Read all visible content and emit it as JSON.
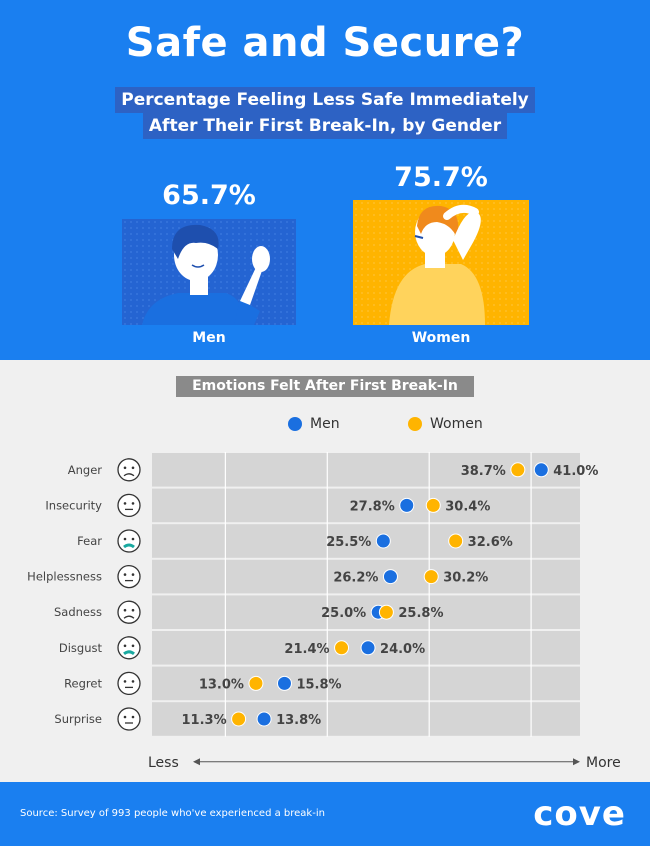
{
  "header": {
    "title": "Safe and Secure?",
    "subtitle_line1": "Percentage Feeling Less Safe Immediately",
    "subtitle_line2": "After Their First Break-In, by Gender"
  },
  "gender": {
    "men": {
      "label": "Men",
      "value": "65.7%"
    },
    "women": {
      "label": "Women",
      "value": "75.7%"
    }
  },
  "emotions_title": "Emotions Felt After First Break-In",
  "colors": {
    "men": "#1a6fe0",
    "women": "#ffb400",
    "blue_bg": "#1a7ff0"
  },
  "chart_data": {
    "type": "scatter",
    "title": "Emotions Felt After First Break-In",
    "categories": [
      "Anger",
      "Insecurity",
      "Fear",
      "Helplessness",
      "Sadness",
      "Disgust",
      "Regret",
      "Surprise"
    ],
    "series": [
      {
        "name": "Men",
        "values": [
          41.0,
          27.8,
          25.5,
          26.2,
          25.0,
          24.0,
          15.8,
          13.8
        ]
      },
      {
        "name": "Women",
        "values": [
          38.7,
          30.4,
          32.6,
          30.2,
          25.8,
          21.4,
          13.0,
          11.3
        ]
      }
    ],
    "labels": {
      "Men": [
        "41.0%",
        "27.8%",
        "25.5%",
        "26.2%",
        "25.0%",
        "24.0%",
        "15.8%",
        "13.8%"
      ],
      "Women": [
        "38.7%",
        "30.4%",
        "32.6%",
        "30.2%",
        "25.8%",
        "21.4%",
        "13.0%",
        "11.3%"
      ]
    },
    "face_icons": [
      "angry-face-icon",
      "uneasy-face-icon",
      "fearful-face-icon",
      "helpless-face-icon",
      "sad-face-icon",
      "disgusted-face-icon",
      "regretful-face-icon",
      "surprised-face-icon"
    ],
    "xlabel_left": "Less",
    "xlabel_right": "More",
    "legend_position": "top"
  },
  "footer": {
    "source": "Source: Survey of 993 people who've experienced a break-in",
    "logo": "cove"
  }
}
